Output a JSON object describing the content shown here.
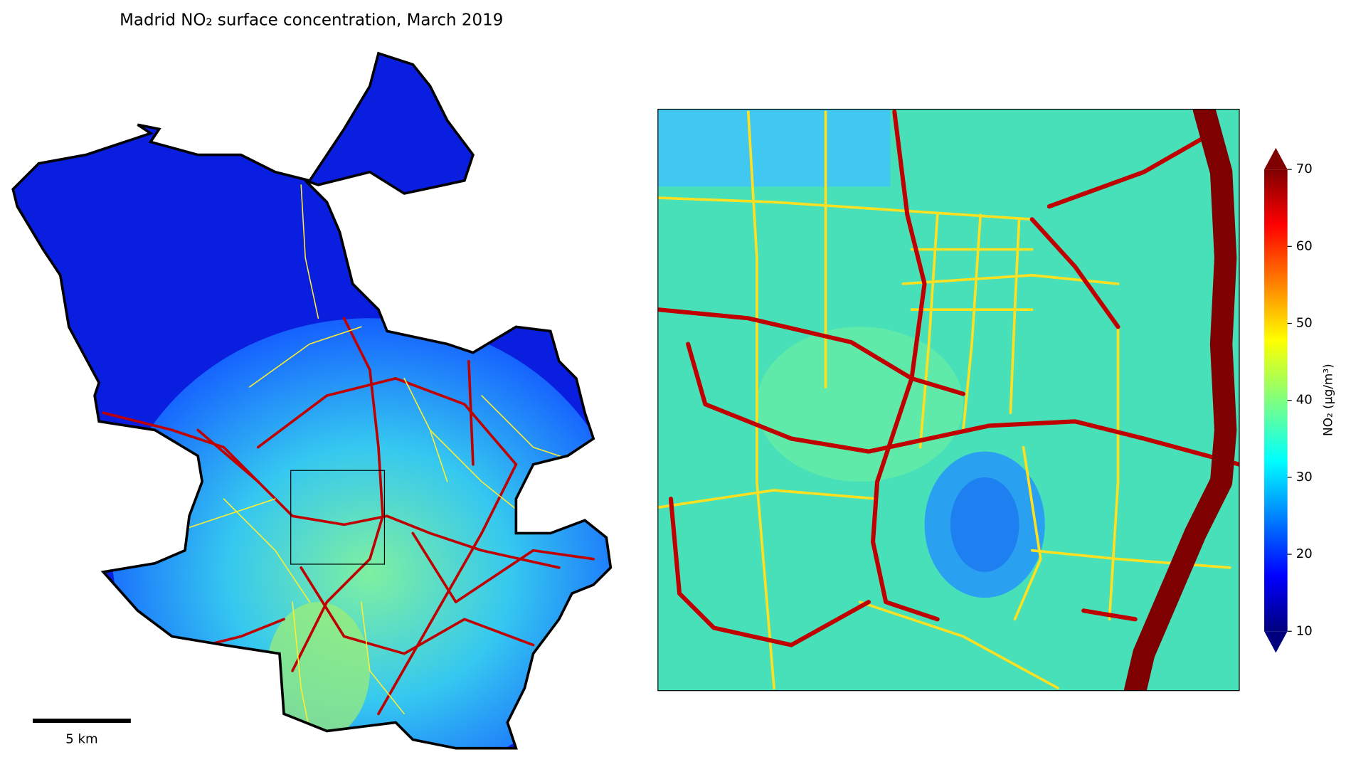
{
  "title": "Madrid NO₂ surface concentration, March 2019",
  "scale_bar": {
    "label": "5 km"
  },
  "colorbar": {
    "label": "NO₂ (μg/m³)",
    "lim": [
      10,
      70
    ],
    "ticks": [
      10,
      20,
      30,
      40,
      50,
      60,
      70
    ]
  }
}
